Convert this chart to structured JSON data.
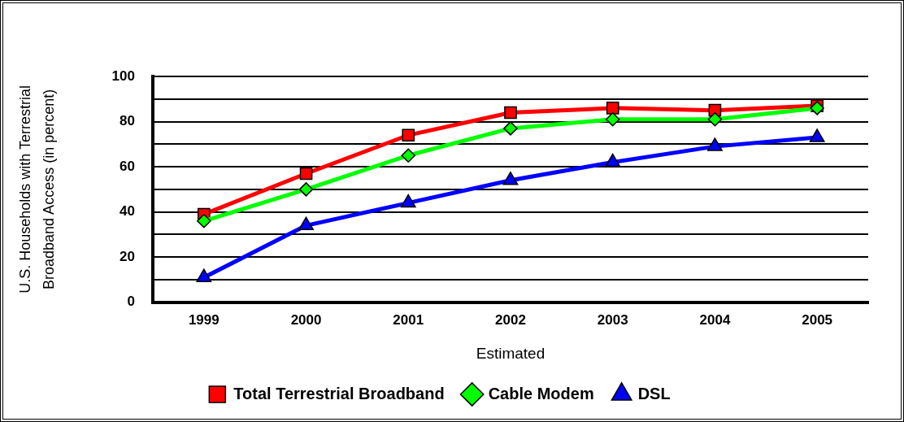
{
  "chart_data": {
    "type": "line",
    "xlabel": "Estimated",
    "ylabel": "U.S. Households with Terrestrial\nBroadband Access (in percent)",
    "categories": [
      "1999",
      "2000",
      "2001",
      "2002",
      "2003",
      "2004",
      "2005"
    ],
    "series": [
      {
        "name": "Total Terrestrial Broadband",
        "color": "#ff0000",
        "marker": "square",
        "values": [
          39,
          57,
          74,
          84,
          86,
          85,
          87
        ]
      },
      {
        "name": "Cable Modem",
        "color": "#00ff00",
        "marker": "diamond",
        "values": [
          36,
          50,
          65,
          77,
          81,
          81,
          86
        ]
      },
      {
        "name": "DSL",
        "color": "#0000ff",
        "marker": "triangle",
        "values": [
          11,
          34,
          44,
          54,
          62,
          69,
          73
        ]
      }
    ],
    "ylim": [
      0,
      100
    ],
    "yticks": [
      0,
      {
        "value": 10,
        "label": null
      },
      20,
      {
        "value": 30,
        "label": null
      },
      40,
      {
        "value": 50,
        "label": null
      },
      60,
      {
        "value": 70,
        "label": null
      },
      80,
      {
        "value": 90,
        "label": null
      },
      100
    ],
    "grid": "y",
    "legend": "bottom",
    "line_style": "solid"
  }
}
